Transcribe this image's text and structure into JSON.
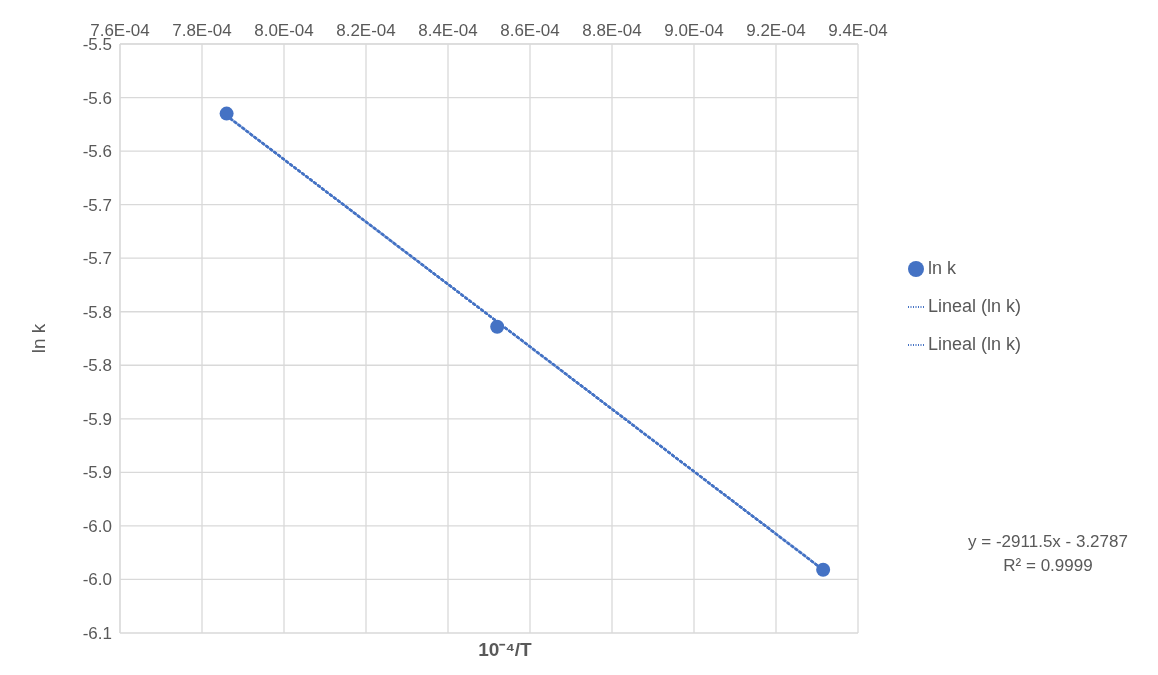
{
  "chart_data": {
    "type": "scatter",
    "xlabel": "10⁻⁴/T",
    "ylabel": "ln k",
    "xlim": [
      0.00076,
      0.00094
    ],
    "xticks": [
      {
        "value": 0.00076,
        "label": "7.6E-04"
      },
      {
        "value": 0.00078,
        "label": "7.8E-04"
      },
      {
        "value": 0.0008,
        "label": "8.0E-04"
      },
      {
        "value": 0.00082,
        "label": "8.2E-04"
      },
      {
        "value": 0.00084,
        "label": "8.4E-04"
      },
      {
        "value": 0.00086,
        "label": "8.6E-04"
      },
      {
        "value": 0.00088,
        "label": "8.8E-04"
      },
      {
        "value": 0.0009,
        "label": "9.0E-04"
      },
      {
        "value": 0.00092,
        "label": "9.2E-04"
      },
      {
        "value": 0.00094,
        "label": "9.4E-04"
      }
    ],
    "ylim": [
      -6.05,
      -5.5
    ],
    "yticks": [
      {
        "value": -5.5,
        "label": "-5.5"
      },
      {
        "value": -5.55,
        "label": "-5.6"
      },
      {
        "value": -5.6,
        "label": "-5.6"
      },
      {
        "value": -5.65,
        "label": "-5.7"
      },
      {
        "value": -5.7,
        "label": "-5.7"
      },
      {
        "value": -5.75,
        "label": "-5.8"
      },
      {
        "value": -5.8,
        "label": "-5.8"
      },
      {
        "value": -5.85,
        "label": "-5.9"
      },
      {
        "value": -5.9,
        "label": "-5.9"
      },
      {
        "value": -5.95,
        "label": "-6.0"
      },
      {
        "value": -6.0,
        "label": "-6.0"
      },
      {
        "value": -6.05,
        "label": "-6.1"
      }
    ],
    "grid": true,
    "legend": "right",
    "series": [
      {
        "name": "ln k",
        "marker": "circle",
        "color": "#4472c4",
        "x": [
          0.000786,
          0.000852,
          0.0009315
        ],
        "values": [
          -5.565,
          -5.764,
          -5.991
        ]
      },
      {
        "name": "Lineal (ln k)",
        "type": "line",
        "marker": "none",
        "line_style": "dotted",
        "color": "#4472c4",
        "x": [
          0.000786,
          0.0009315
        ],
        "values": [
          -5.567,
          -5.991
        ]
      },
      {
        "name": "Lineal (ln k)",
        "type": "line",
        "marker": "none",
        "line_style": "dotted",
        "color": "#4472c4",
        "x": [
          0.000786,
          0.0009315
        ],
        "values": [
          -5.567,
          -5.991
        ]
      }
    ],
    "annotations": [
      "y = -2911.5x - 3.2787",
      "R² = 0.9999"
    ]
  }
}
